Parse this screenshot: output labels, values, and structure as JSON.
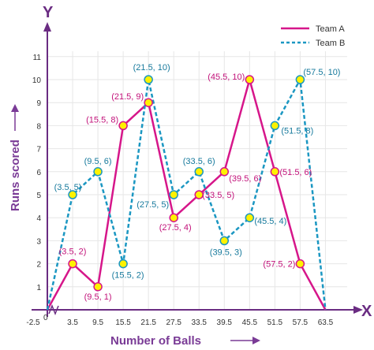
{
  "chart_data": {
    "type": "line",
    "xlabel": "Number of Balls",
    "ylabel": "Runs scored",
    "x_axis_letter": "X",
    "y_axis_letter": "Y",
    "origin_label": "0",
    "x_ticks": [
      "-2.5",
      "3.5",
      "9.5",
      "15.5",
      "21.5",
      "27.5",
      "33.5",
      "39.5",
      "45.5",
      "51.5",
      "57.5",
      "63.5"
    ],
    "y_ticks": [
      "1",
      "2",
      "3",
      "4",
      "5",
      "6",
      "7",
      "8",
      "9",
      "10",
      "11"
    ],
    "xlim": [
      -2.5,
      63.5
    ],
    "ylim": [
      0,
      11
    ],
    "legend_position": "top-right",
    "series": [
      {
        "name": "Team A",
        "color": "#d6168a",
        "style": "solid",
        "x": [
          -2.5,
          3.5,
          9.5,
          15.5,
          21.5,
          27.5,
          33.5,
          39.5,
          45.5,
          51.5,
          57.5,
          63.5
        ],
        "y": [
          0,
          2,
          1,
          8,
          9,
          4,
          5,
          6,
          10,
          6,
          2,
          0
        ],
        "point_labels": [
          "",
          "(3.5, 2)",
          "(9.5, 1)",
          "(15.5, 8)",
          "(21.5, 9)",
          "(27.5, 4)",
          "(33.5, 5)",
          "(39.5, 6)",
          "(45.5, 10)",
          "(51.5, 6)",
          "(57.5, 2)",
          ""
        ]
      },
      {
        "name": "Team B",
        "color": "#1b97c2",
        "style": "dashed",
        "x": [
          -2.5,
          3.5,
          9.5,
          15.5,
          21.5,
          27.5,
          33.5,
          39.5,
          45.5,
          51.5,
          57.5,
          63.5
        ],
        "y": [
          0,
          5,
          6,
          2,
          10,
          5,
          6,
          3,
          4,
          8,
          10,
          0
        ],
        "point_labels": [
          "",
          "(3.5, 5)",
          "(9.5, 6)",
          "(15.5, 2)",
          "(21.5, 10)",
          "(27.5, 5)",
          "(33.5, 6)",
          "(39.5, 3)",
          "(45.5, 4)",
          "(51.5, 8)",
          "(57.5, 10)",
          ""
        ]
      }
    ]
  }
}
